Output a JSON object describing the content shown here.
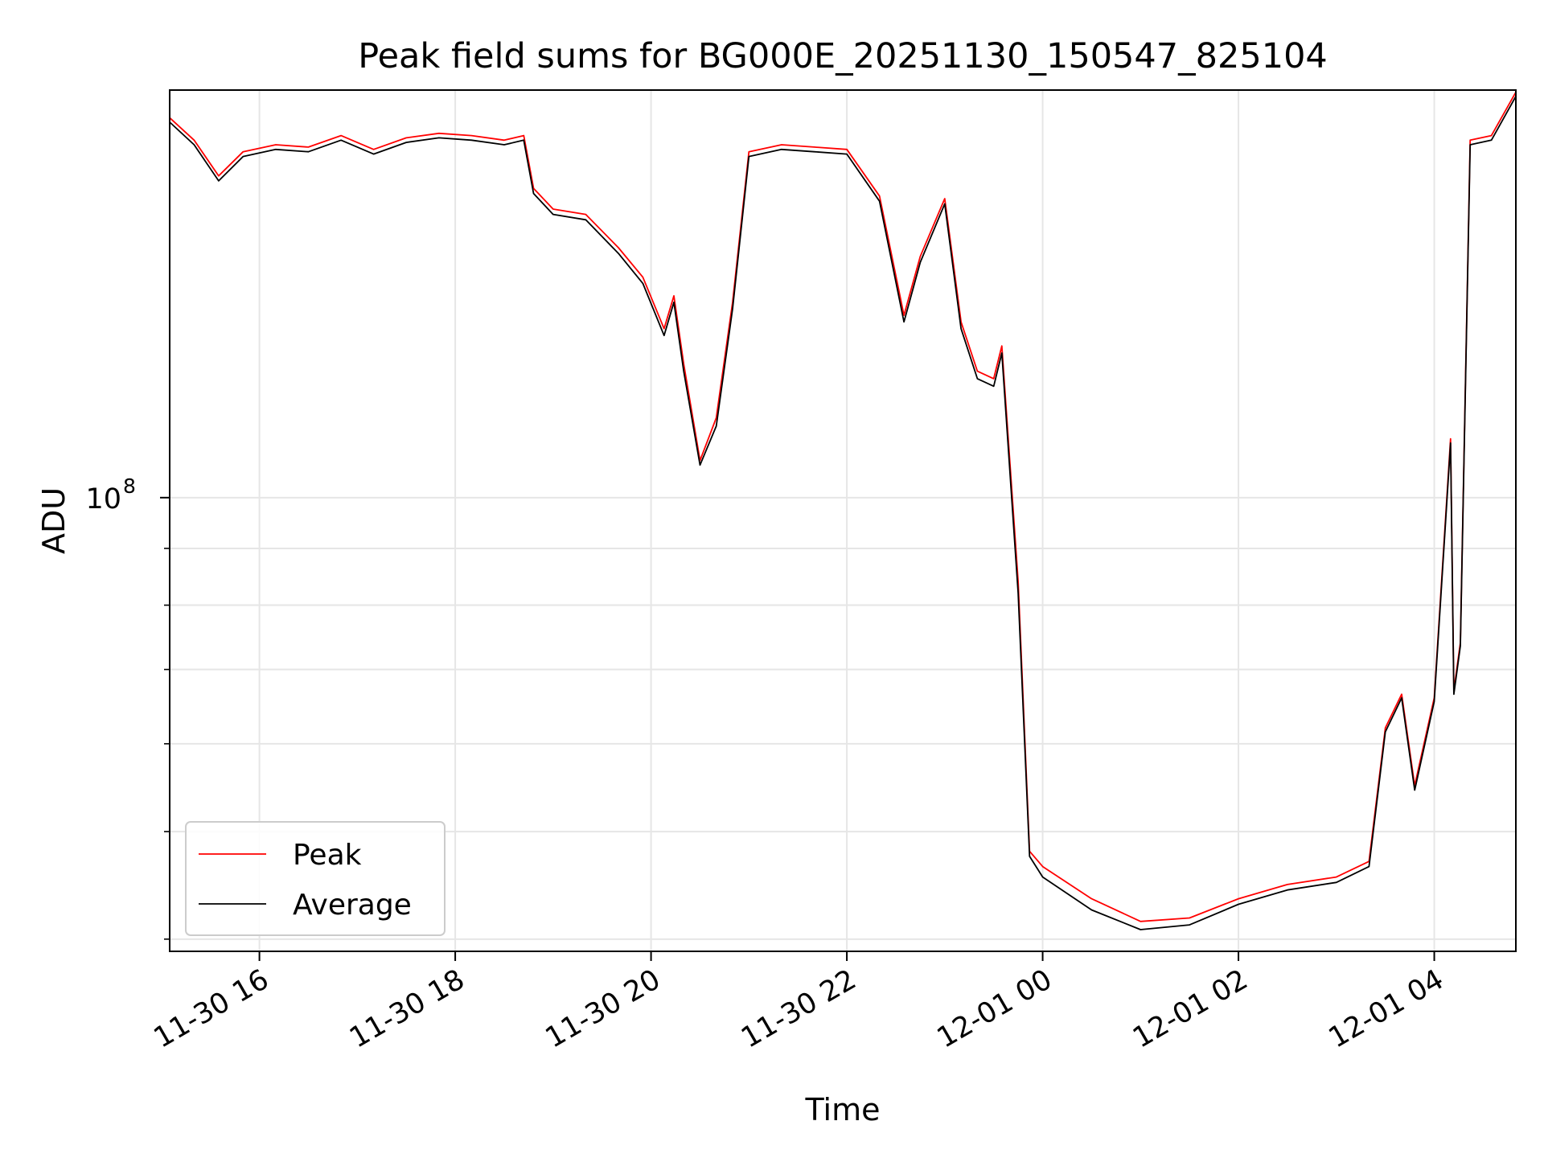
{
  "chart_data": {
    "type": "line",
    "title": "Peak field sums for BG000E_20251130_150547_825104",
    "xlabel": "Time",
    "ylabel": "ADU",
    "yscale": "log",
    "grid": true,
    "legend_position": "lower-left",
    "x_range": [
      "11-30 15:05",
      "12-01 04:50"
    ],
    "ylim": [
      39000000,
      233000000
    ],
    "x_ticks": [
      "11-30 16",
      "11-30 18",
      "11-30 20",
      "11-30 22",
      "12-01 00",
      "12-01 02",
      "12-01 04"
    ],
    "y_ticks_major": [
      {
        "value": 100000000,
        "base": "10",
        "exp": "8"
      }
    ],
    "y_ticks_minor": [
      40000000,
      50000000,
      60000000,
      70000000,
      80000000,
      90000000
    ],
    "x": [
      "11-30 15:05",
      "11-30 15:20",
      "11-30 15:35",
      "11-30 15:50",
      "11-30 16:10",
      "11-30 16:30",
      "11-30 16:50",
      "11-30 17:10",
      "11-30 17:30",
      "11-30 17:50",
      "11-30 18:10",
      "11-30 18:30",
      "11-30 18:42",
      "11-30 18:48",
      "11-30 19:00",
      "11-30 19:20",
      "11-30 19:40",
      "11-30 19:55",
      "11-30 20:08",
      "11-30 20:14",
      "11-30 20:20",
      "11-30 20:30",
      "11-30 20:40",
      "11-30 20:50",
      "11-30 21:00",
      "11-30 21:20",
      "11-30 21:40",
      "11-30 22:00",
      "11-30 22:20",
      "11-30 22:35",
      "11-30 22:45",
      "11-30 23:00",
      "11-30 23:10",
      "11-30 23:20",
      "11-30 23:30",
      "11-30 23:35",
      "11-30 23:45",
      "11-30 23:52",
      "12-01 00:00",
      "12-01 00:30",
      "12-01 01:00",
      "12-01 01:30",
      "12-01 02:00",
      "12-01 02:30",
      "12-01 03:00",
      "12-01 03:20",
      "12-01 03:30",
      "12-01 03:40",
      "12-01 03:48",
      "12-01 04:00",
      "12-01 04:10",
      "12-01 04:12",
      "12-01 04:16",
      "12-01 04:22",
      "12-01 04:35",
      "12-01 04:50"
    ],
    "series": [
      {
        "name": "Peak",
        "color": "#ff0000",
        "values": [
          220000000,
          210000000,
          195000000,
          205000000,
          208000000,
          207000000,
          212000000,
          206000000,
          211000000,
          213000000,
          212000000,
          210000000,
          212000000,
          190000000,
          182000000,
          180000000,
          168000000,
          158000000,
          142000000,
          152000000,
          132000000,
          108000000,
          118000000,
          150000000,
          205000000,
          208000000,
          207000000,
          206000000,
          187000000,
          146000000,
          165000000,
          186000000,
          144000000,
          130000000,
          128000000,
          137000000,
          84000000,
          48000000,
          46500000,
          43500000,
          41500000,
          41800000,
          43500000,
          44800000,
          45500000,
          47000000,
          62000000,
          66500000,
          55000000,
          66000000,
          113000000,
          67000000,
          74000000,
          210000000,
          212000000,
          232000000
        ]
      },
      {
        "name": "Average",
        "color": "#000000",
        "values": [
          218000000,
          208000000,
          193000000,
          203000000,
          206000000,
          205000000,
          210000000,
          204000000,
          209000000,
          211000000,
          210000000,
          208000000,
          210000000,
          188000000,
          180000000,
          178000000,
          166000000,
          156000000,
          140000000,
          150000000,
          130000000,
          107000000,
          116000000,
          148000000,
          203000000,
          206000000,
          205000000,
          204000000,
          185000000,
          144000000,
          163000000,
          184000000,
          142000000,
          128000000,
          126000000,
          135000000,
          82000000,
          47500000,
          45500000,
          42500000,
          40800000,
          41200000,
          43000000,
          44300000,
          45000000,
          46500000,
          61500000,
          66000000,
          54500000,
          65500000,
          112000000,
          66500000,
          73500000,
          208000000,
          210000000,
          230000000
        ]
      }
    ]
  }
}
